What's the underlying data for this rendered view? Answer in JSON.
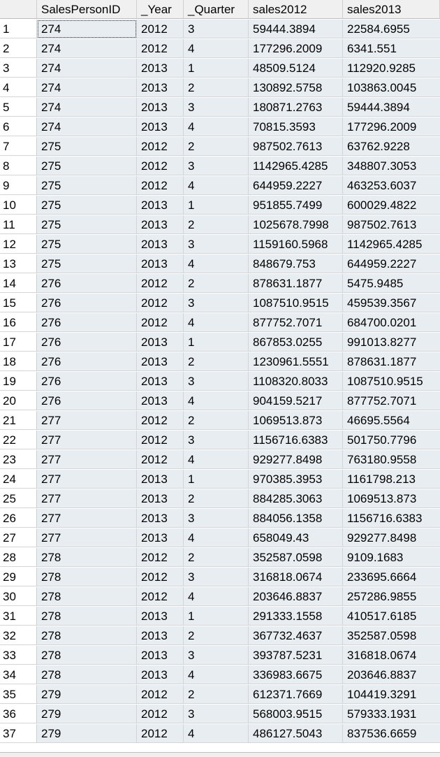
{
  "columns": [
    "",
    "SalesPersonID",
    "_Year",
    "_Quarter",
    "sales2012",
    "sales2013"
  ],
  "rows": [
    [
      "1",
      "274",
      "2012",
      "3",
      "59444.3894",
      "22584.6955"
    ],
    [
      "2",
      "274",
      "2012",
      "4",
      "177296.2009",
      "6341.551"
    ],
    [
      "3",
      "274",
      "2013",
      "1",
      "48509.5124",
      "112920.9285"
    ],
    [
      "4",
      "274",
      "2013",
      "2",
      "130892.5758",
      "103863.0045"
    ],
    [
      "5",
      "274",
      "2013",
      "3",
      "180871.2763",
      "59444.3894"
    ],
    [
      "6",
      "274",
      "2013",
      "4",
      "70815.3593",
      "177296.2009"
    ],
    [
      "7",
      "275",
      "2012",
      "2",
      "987502.7613",
      "63762.9228"
    ],
    [
      "8",
      "275",
      "2012",
      "3",
      "1142965.4285",
      "348807.3053"
    ],
    [
      "9",
      "275",
      "2012",
      "4",
      "644959.2227",
      "463253.6037"
    ],
    [
      "10",
      "275",
      "2013",
      "1",
      "951855.7499",
      "600029.4822"
    ],
    [
      "11",
      "275",
      "2013",
      "2",
      "1025678.7998",
      "987502.7613"
    ],
    [
      "12",
      "275",
      "2013",
      "3",
      "1159160.5968",
      "1142965.4285"
    ],
    [
      "13",
      "275",
      "2013",
      "4",
      "848679.753",
      "644959.2227"
    ],
    [
      "14",
      "276",
      "2012",
      "2",
      "878631.1877",
      "5475.9485"
    ],
    [
      "15",
      "276",
      "2012",
      "3",
      "1087510.9515",
      "459539.3567"
    ],
    [
      "16",
      "276",
      "2012",
      "4",
      "877752.7071",
      "684700.0201"
    ],
    [
      "17",
      "276",
      "2013",
      "1",
      "867853.0255",
      "991013.8277"
    ],
    [
      "18",
      "276",
      "2013",
      "2",
      "1230961.5551",
      "878631.1877"
    ],
    [
      "19",
      "276",
      "2013",
      "3",
      "1108320.8033",
      "1087510.9515"
    ],
    [
      "20",
      "276",
      "2013",
      "4",
      "904159.5217",
      "877752.7071"
    ],
    [
      "21",
      "277",
      "2012",
      "2",
      "1069513.873",
      "46695.5564"
    ],
    [
      "22",
      "277",
      "2012",
      "3",
      "1156716.6383",
      "501750.7796"
    ],
    [
      "23",
      "277",
      "2012",
      "4",
      "929277.8498",
      "763180.9558"
    ],
    [
      "24",
      "277",
      "2013",
      "1",
      "970385.3953",
      "1161798.213"
    ],
    [
      "25",
      "277",
      "2013",
      "2",
      "884285.3063",
      "1069513.873"
    ],
    [
      "26",
      "277",
      "2013",
      "3",
      "884056.1358",
      "1156716.6383"
    ],
    [
      "27",
      "277",
      "2013",
      "4",
      "658049.43",
      "929277.8498"
    ],
    [
      "28",
      "278",
      "2012",
      "2",
      "352587.0598",
      "9109.1683"
    ],
    [
      "29",
      "278",
      "2012",
      "3",
      "316818.0674",
      "233695.6664"
    ],
    [
      "30",
      "278",
      "2012",
      "4",
      "203646.8837",
      "257286.9855"
    ],
    [
      "31",
      "278",
      "2013",
      "1",
      "291333.1558",
      "410517.6185"
    ],
    [
      "32",
      "278",
      "2013",
      "2",
      "367732.4637",
      "352587.0598"
    ],
    [
      "33",
      "278",
      "2013",
      "3",
      "393787.5231",
      "316818.0674"
    ],
    [
      "34",
      "278",
      "2013",
      "4",
      "336983.6675",
      "203646.8837"
    ],
    [
      "35",
      "279",
      "2012",
      "2",
      "612371.7669",
      "104419.3291"
    ],
    [
      "36",
      "279",
      "2012",
      "3",
      "568003.9515",
      "579333.1931"
    ],
    [
      "37",
      "279",
      "2012",
      "4",
      "486127.5043",
      "837536.6659"
    ]
  ]
}
